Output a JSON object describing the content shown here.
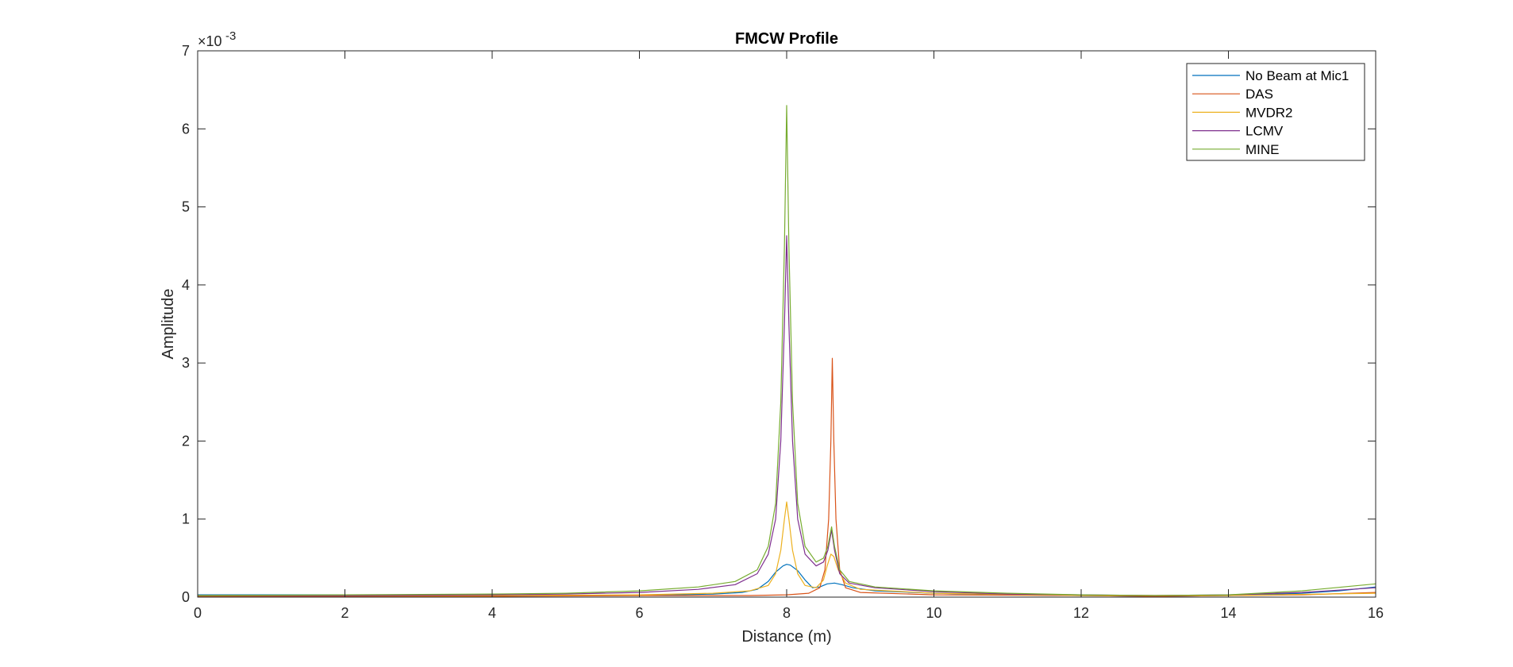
{
  "chart_data": {
    "type": "line",
    "title": "FMCW Profile",
    "xlabel": "Distance (m)",
    "ylabel": "Amplitude",
    "y_exponent_label": "×10",
    "y_exponent_value": "-3",
    "xlim": [
      0,
      16
    ],
    "ylim": [
      0,
      7
    ],
    "x_ticks": [
      "0",
      "2",
      "4",
      "6",
      "8",
      "10",
      "12",
      "14",
      "16"
    ],
    "y_ticks": [
      "0",
      "1",
      "2",
      "3",
      "4",
      "5",
      "6",
      "7"
    ],
    "grid": false,
    "legend_position": "top-right",
    "series": [
      {
        "name": "No Beam at Mic1",
        "color": "#0072BD",
        "points": [
          [
            0,
            0.03
          ],
          [
            1,
            0.03
          ],
          [
            2,
            0.03
          ],
          [
            3,
            0.03
          ],
          [
            4,
            0.02
          ],
          [
            5,
            0.02
          ],
          [
            6,
            0.02
          ],
          [
            6.5,
            0.03
          ],
          [
            7,
            0.04
          ],
          [
            7.4,
            0.06
          ],
          [
            7.6,
            0.1
          ],
          [
            7.75,
            0.2
          ],
          [
            7.85,
            0.32
          ],
          [
            7.95,
            0.4
          ],
          [
            8.0,
            0.42
          ],
          [
            8.05,
            0.41
          ],
          [
            8.15,
            0.34
          ],
          [
            8.25,
            0.22
          ],
          [
            8.35,
            0.12
          ],
          [
            8.45,
            0.13
          ],
          [
            8.55,
            0.17
          ],
          [
            8.65,
            0.18
          ],
          [
            8.75,
            0.16
          ],
          [
            8.9,
            0.12
          ],
          [
            9.2,
            0.08
          ],
          [
            10,
            0.05
          ],
          [
            11,
            0.03
          ],
          [
            12,
            0.02
          ],
          [
            13,
            0.01
          ],
          [
            14,
            0.02
          ],
          [
            15,
            0.05
          ],
          [
            15.5,
            0.08
          ],
          [
            16,
            0.13
          ]
        ]
      },
      {
        "name": "DAS",
        "color": "#D95319",
        "points": [
          [
            0,
            0.01
          ],
          [
            2,
            0.01
          ],
          [
            4,
            0.01
          ],
          [
            6,
            0.02
          ],
          [
            7,
            0.02
          ],
          [
            7.5,
            0.02
          ],
          [
            8,
            0.03
          ],
          [
            8.3,
            0.05
          ],
          [
            8.45,
            0.12
          ],
          [
            8.52,
            0.35
          ],
          [
            8.57,
            1.0
          ],
          [
            8.6,
            2.0
          ],
          [
            8.62,
            3.06
          ],
          [
            8.64,
            2.0
          ],
          [
            8.67,
            1.0
          ],
          [
            8.72,
            0.35
          ],
          [
            8.8,
            0.12
          ],
          [
            9.0,
            0.06
          ],
          [
            10,
            0.03
          ],
          [
            12,
            0.02
          ],
          [
            13,
            0.01
          ],
          [
            14,
            0.02
          ],
          [
            15,
            0.03
          ],
          [
            16,
            0.06
          ]
        ]
      },
      {
        "name": "MVDR2",
        "color": "#EDB120",
        "points": [
          [
            0,
            0.02
          ],
          [
            2,
            0.02
          ],
          [
            4,
            0.02
          ],
          [
            6,
            0.03
          ],
          [
            7,
            0.05
          ],
          [
            7.5,
            0.08
          ],
          [
            7.75,
            0.15
          ],
          [
            7.85,
            0.3
          ],
          [
            7.92,
            0.6
          ],
          [
            7.97,
            1.0
          ],
          [
            8.0,
            1.22
          ],
          [
            8.03,
            1.0
          ],
          [
            8.08,
            0.6
          ],
          [
            8.15,
            0.3
          ],
          [
            8.25,
            0.15
          ],
          [
            8.4,
            0.12
          ],
          [
            8.5,
            0.22
          ],
          [
            8.55,
            0.4
          ],
          [
            8.6,
            0.55
          ],
          [
            8.64,
            0.52
          ],
          [
            8.7,
            0.35
          ],
          [
            8.8,
            0.18
          ],
          [
            9.0,
            0.1
          ],
          [
            10,
            0.05
          ],
          [
            12,
            0.02
          ],
          [
            14,
            0.02
          ],
          [
            16,
            0.05
          ]
        ]
      },
      {
        "name": "LCMV",
        "color": "#7E2F8E",
        "points": [
          [
            0,
            0.02
          ],
          [
            2,
            0.02
          ],
          [
            4,
            0.03
          ],
          [
            5,
            0.04
          ],
          [
            6,
            0.06
          ],
          [
            6.8,
            0.1
          ],
          [
            7.3,
            0.16
          ],
          [
            7.6,
            0.3
          ],
          [
            7.75,
            0.55
          ],
          [
            7.85,
            1.0
          ],
          [
            7.92,
            2.0
          ],
          [
            7.97,
            3.5
          ],
          [
            8.0,
            4.63
          ],
          [
            8.03,
            3.5
          ],
          [
            8.08,
            2.0
          ],
          [
            8.15,
            1.0
          ],
          [
            8.25,
            0.55
          ],
          [
            8.4,
            0.4
          ],
          [
            8.5,
            0.45
          ],
          [
            8.56,
            0.6
          ],
          [
            8.61,
            0.86
          ],
          [
            8.65,
            0.6
          ],
          [
            8.72,
            0.3
          ],
          [
            8.85,
            0.18
          ],
          [
            9.2,
            0.12
          ],
          [
            10,
            0.07
          ],
          [
            11,
            0.04
          ],
          [
            12,
            0.03
          ],
          [
            13,
            0.02
          ],
          [
            14,
            0.03
          ],
          [
            15,
            0.06
          ],
          [
            16,
            0.12
          ]
        ]
      },
      {
        "name": "MINE",
        "color": "#77AC30",
        "points": [
          [
            0,
            0.02
          ],
          [
            2,
            0.03
          ],
          [
            4,
            0.04
          ],
          [
            5,
            0.05
          ],
          [
            6,
            0.08
          ],
          [
            6.8,
            0.13
          ],
          [
            7.3,
            0.2
          ],
          [
            7.6,
            0.35
          ],
          [
            7.75,
            0.65
          ],
          [
            7.85,
            1.2
          ],
          [
            7.92,
            2.5
          ],
          [
            7.97,
            4.5
          ],
          [
            8.0,
            6.3
          ],
          [
            8.03,
            4.5
          ],
          [
            8.08,
            2.5
          ],
          [
            8.15,
            1.2
          ],
          [
            8.25,
            0.65
          ],
          [
            8.4,
            0.45
          ],
          [
            8.5,
            0.5
          ],
          [
            8.56,
            0.65
          ],
          [
            8.61,
            0.9
          ],
          [
            8.65,
            0.65
          ],
          [
            8.72,
            0.35
          ],
          [
            8.85,
            0.2
          ],
          [
            9.2,
            0.13
          ],
          [
            10,
            0.08
          ],
          [
            11,
            0.05
          ],
          [
            12,
            0.03
          ],
          [
            13,
            0.02
          ],
          [
            14,
            0.03
          ],
          [
            15,
            0.08
          ],
          [
            16,
            0.17
          ]
        ]
      }
    ]
  }
}
